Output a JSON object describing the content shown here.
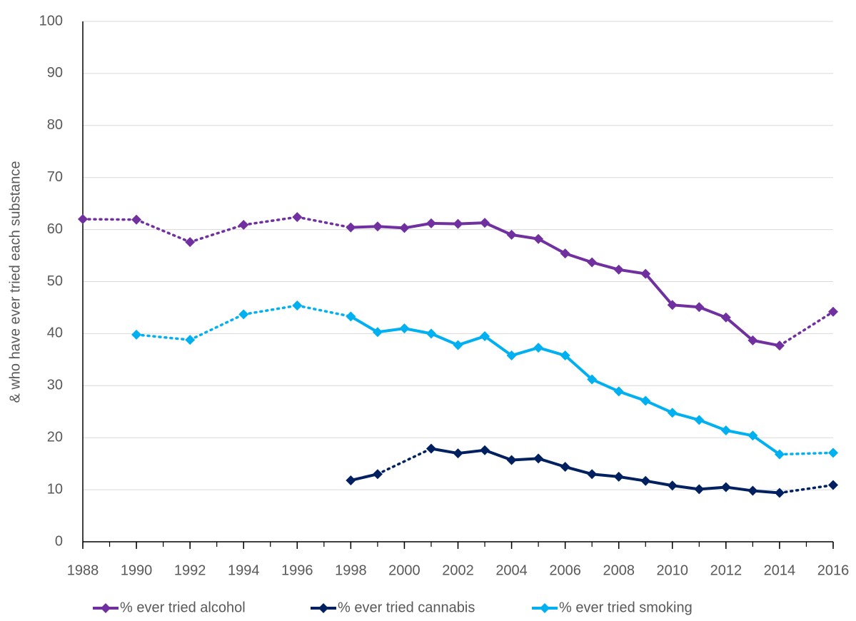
{
  "chart_data": {
    "type": "line",
    "ylabel": "& who have ever tried each substance",
    "xlim": [
      1988,
      2016
    ],
    "xticks": [
      1988,
      1990,
      1992,
      1994,
      1996,
      1998,
      2000,
      2002,
      2004,
      2006,
      2008,
      2010,
      2012,
      2014,
      2016
    ],
    "ylim": [
      0,
      100
    ],
    "yticks": [
      0,
      10,
      20,
      30,
      40,
      50,
      60,
      70,
      80,
      90,
      100
    ],
    "grid": true,
    "legend": "bottom",
    "series": [
      {
        "name": "% ever tried alcohol",
        "color": "#7030a0",
        "x": [
          1988,
          1990,
          1992,
          1994,
          1996,
          1998,
          1999,
          2000,
          2001,
          2002,
          2003,
          2004,
          2005,
          2006,
          2007,
          2008,
          2009,
          2010,
          2011,
          2012,
          2013,
          2014,
          2016
        ],
        "values": [
          62,
          61.9,
          57.6,
          60.9,
          62.4,
          60.4,
          60.6,
          60.3,
          61.2,
          61.1,
          61.3,
          59,
          58.2,
          55.4,
          53.7,
          52.3,
          51.5,
          45.5,
          45.1,
          43.1,
          38.7,
          37.7,
          44.2
        ]
      },
      {
        "name": "% ever tried cannabis",
        "color": "#002060",
        "x": [
          1998,
          1999,
          2001,
          2002,
          2003,
          2004,
          2005,
          2006,
          2007,
          2008,
          2009,
          2010,
          2011,
          2012,
          2013,
          2014,
          2016
        ],
        "values": [
          11.8,
          13,
          17.9,
          17,
          17.6,
          15.7,
          16,
          14.4,
          13,
          12.5,
          11.7,
          10.8,
          10.1,
          10.5,
          9.8,
          9.4,
          10.9
        ]
      },
      {
        "name": "% ever tried smoking",
        "color": "#00b0f0",
        "x": [
          1990,
          1992,
          1994,
          1996,
          1998,
          1999,
          2000,
          2001,
          2002,
          2003,
          2004,
          2005,
          2006,
          2007,
          2008,
          2009,
          2010,
          2011,
          2012,
          2013,
          2014,
          2016
        ],
        "values": [
          39.8,
          38.8,
          43.7,
          45.4,
          43.3,
          40.3,
          41,
          40,
          37.8,
          39.5,
          35.8,
          37.3,
          35.8,
          31.2,
          28.9,
          27.1,
          24.8,
          23.4,
          21.4,
          20.4,
          16.8,
          17.1
        ]
      }
    ]
  }
}
